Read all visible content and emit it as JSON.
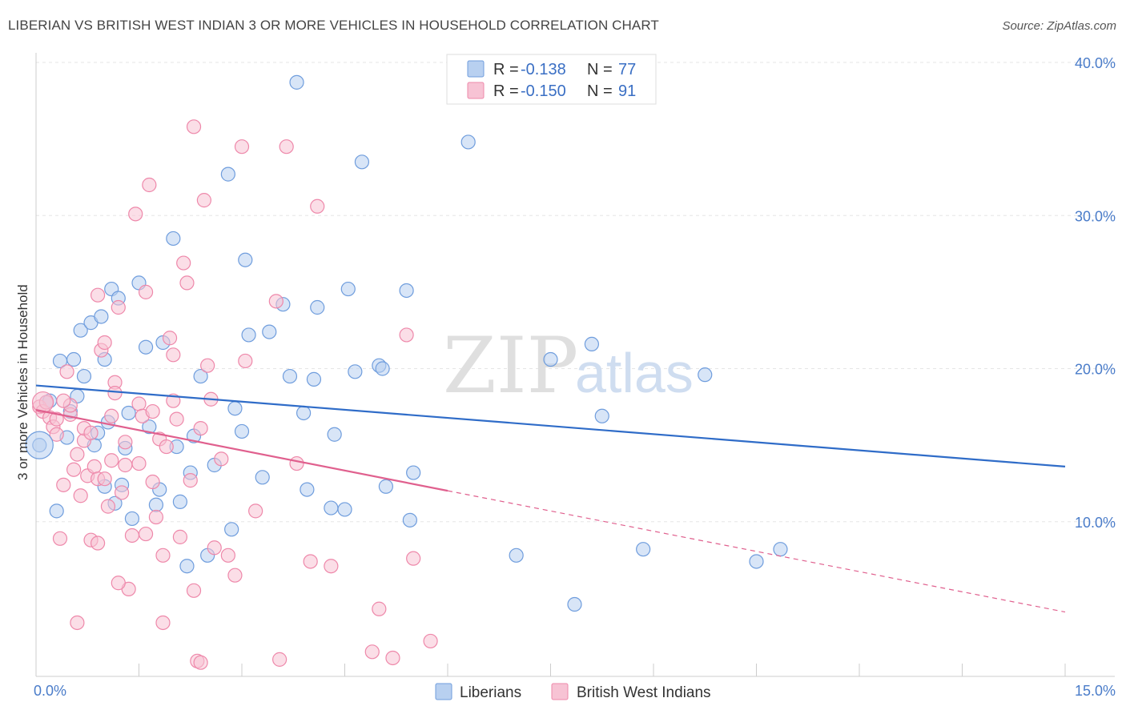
{
  "title": "LIBERIAN VS BRITISH WEST INDIAN 3 OR MORE VEHICLES IN HOUSEHOLD CORRELATION CHART",
  "source": "Source: ZipAtlas.com",
  "watermark": {
    "zip": "ZIP",
    "atlas": "atlas"
  },
  "colors": {
    "blue": "#6f9ddd",
    "blue_fill": "#b8d0f0",
    "blue_line": "#2f6cc8",
    "pink": "#ee88aa",
    "pink_fill": "#f7c3d4",
    "pink_line": "#e0608e"
  },
  "legend": {
    "rows": [
      {
        "r_label": "R =",
        "r_value": "-0.138",
        "n_label": "N =",
        "n_value": "77"
      },
      {
        "r_label": "R =",
        "r_value": "-0.150",
        "n_label": "N =",
        "n_value": "91"
      }
    ]
  },
  "chart_data": {
    "type": "scatter",
    "title": "LIBERIAN VS BRITISH WEST INDIAN 3 OR MORE VEHICLES IN HOUSEHOLD CORRELATION CHART",
    "xlabel": "",
    "ylabel": "3 or more Vehicles in Household",
    "xlim": [
      0,
      15
    ],
    "ylim": [
      0,
      40
    ],
    "x_tick_labels": [
      "0.0%",
      "15.0%"
    ],
    "y_tick_labels": [
      "10.0%",
      "20.0%",
      "30.0%",
      "40.0%"
    ],
    "y_ticks": [
      10,
      20,
      30,
      40
    ],
    "grid": true,
    "legend_entries": [
      "Liberians",
      "British West Indians"
    ],
    "series": [
      {
        "name": "Liberians",
        "color": "#6f9ddd",
        "trend": {
          "x0": 0,
          "y0": 18.9,
          "x1": 15,
          "y1": 13.6,
          "dashed_from": null
        },
        "points": [
          [
            0.05,
            15.0
          ],
          [
            0.15,
            17.8
          ],
          [
            0.3,
            10.7
          ],
          [
            0.35,
            20.5
          ],
          [
            0.45,
            15.5
          ],
          [
            0.5,
            17.2
          ],
          [
            0.55,
            20.6
          ],
          [
            0.6,
            18.2
          ],
          [
            0.65,
            22.5
          ],
          [
            0.7,
            19.5
          ],
          [
            0.8,
            23.0
          ],
          [
            0.85,
            15.0
          ],
          [
            0.9,
            15.8
          ],
          [
            0.95,
            23.4
          ],
          [
            1.0,
            20.6
          ],
          [
            1.05,
            16.5
          ],
          [
            1.1,
            25.2
          ],
          [
            1.15,
            11.2
          ],
          [
            1.2,
            24.6
          ],
          [
            1.25,
            12.4
          ],
          [
            1.3,
            14.8
          ],
          [
            1.35,
            17.1
          ],
          [
            1.4,
            10.2
          ],
          [
            1.5,
            25.6
          ],
          [
            1.6,
            21.4
          ],
          [
            1.65,
            16.2
          ],
          [
            1.8,
            12.1
          ],
          [
            1.75,
            11.1
          ],
          [
            1.85,
            21.7
          ],
          [
            2.0,
            28.5
          ],
          [
            2.05,
            14.9
          ],
          [
            2.2,
            7.1
          ],
          [
            2.25,
            13.2
          ],
          [
            2.3,
            15.6
          ],
          [
            2.4,
            19.5
          ],
          [
            2.5,
            7.8
          ],
          [
            2.6,
            13.7
          ],
          [
            2.8,
            32.7
          ],
          [
            2.9,
            17.4
          ],
          [
            2.85,
            9.5
          ],
          [
            3.0,
            15.9
          ],
          [
            3.05,
            27.1
          ],
          [
            3.1,
            22.2
          ],
          [
            3.3,
            12.9
          ],
          [
            3.4,
            22.4
          ],
          [
            3.6,
            24.2
          ],
          [
            3.7,
            19.5
          ],
          [
            3.8,
            38.7
          ],
          [
            3.9,
            17.1
          ],
          [
            3.95,
            12.1
          ],
          [
            4.05,
            19.3
          ],
          [
            4.1,
            24.0
          ],
          [
            4.3,
            10.9
          ],
          [
            4.35,
            15.7
          ],
          [
            4.5,
            10.8
          ],
          [
            4.55,
            25.2
          ],
          [
            4.65,
            19.8
          ],
          [
            4.75,
            33.5
          ],
          [
            5.0,
            20.2
          ],
          [
            5.05,
            20.0
          ],
          [
            5.1,
            12.3
          ],
          [
            5.4,
            25.1
          ],
          [
            5.45,
            10.1
          ],
          [
            5.5,
            13.2
          ],
          [
            6.3,
            34.8
          ],
          [
            7.0,
            7.8
          ],
          [
            7.5,
            20.6
          ],
          [
            7.85,
            4.6
          ],
          [
            8.1,
            21.6
          ],
          [
            8.25,
            16.9
          ],
          [
            8.85,
            8.2
          ],
          [
            9.75,
            19.6
          ],
          [
            10.5,
            7.4
          ],
          [
            10.85,
            8.2
          ],
          [
            0.2,
            17.9
          ],
          [
            1.0,
            12.3
          ],
          [
            2.1,
            11.3
          ]
        ]
      },
      {
        "name": "British West Indians",
        "color": "#ee88aa",
        "trend": {
          "x0": 0,
          "y0": 17.3,
          "x1": 15,
          "y1": 4.1,
          "dashed_from": 6.0
        },
        "points": [
          [
            0.05,
            17.5
          ],
          [
            0.1,
            17.2
          ],
          [
            0.15,
            17.8
          ],
          [
            0.2,
            16.8
          ],
          [
            0.25,
            16.2
          ],
          [
            0.3,
            15.7
          ],
          [
            0.35,
            8.9
          ],
          [
            0.4,
            12.4
          ],
          [
            0.45,
            19.8
          ],
          [
            0.5,
            17.0
          ],
          [
            0.55,
            13.4
          ],
          [
            0.6,
            14.4
          ],
          [
            0.65,
            11.7
          ],
          [
            0.7,
            15.3
          ],
          [
            0.75,
            13.0
          ],
          [
            0.8,
            8.8
          ],
          [
            0.85,
            13.6
          ],
          [
            0.9,
            8.6
          ],
          [
            0.95,
            21.2
          ],
          [
            1.0,
            21.7
          ],
          [
            1.05,
            11.0
          ],
          [
            1.1,
            14.0
          ],
          [
            1.15,
            19.1
          ],
          [
            1.2,
            24.0
          ],
          [
            1.25,
            11.9
          ],
          [
            1.3,
            13.7
          ],
          [
            1.35,
            5.6
          ],
          [
            1.4,
            9.1
          ],
          [
            1.45,
            30.1
          ],
          [
            1.5,
            17.7
          ],
          [
            1.55,
            16.9
          ],
          [
            1.6,
            25.0
          ],
          [
            1.65,
            32.0
          ],
          [
            1.7,
            12.6
          ],
          [
            1.75,
            10.3
          ],
          [
            1.8,
            15.4
          ],
          [
            1.85,
            7.8
          ],
          [
            1.9,
            14.9
          ],
          [
            1.95,
            22.0
          ],
          [
            2.0,
            20.9
          ],
          [
            2.05,
            16.7
          ],
          [
            2.1,
            9.0
          ],
          [
            2.15,
            26.9
          ],
          [
            2.2,
            25.6
          ],
          [
            2.25,
            12.7
          ],
          [
            2.3,
            35.8
          ],
          [
            2.35,
            0.9
          ],
          [
            2.4,
            0.8
          ],
          [
            2.45,
            31.0
          ],
          [
            2.5,
            20.2
          ],
          [
            2.55,
            18.0
          ],
          [
            2.6,
            8.3
          ],
          [
            2.7,
            14.1
          ],
          [
            2.8,
            7.8
          ],
          [
            2.9,
            6.5
          ],
          [
            3.0,
            34.5
          ],
          [
            3.05,
            20.5
          ],
          [
            3.2,
            10.7
          ],
          [
            3.5,
            24.4
          ],
          [
            3.55,
            1.0
          ],
          [
            3.65,
            34.5
          ],
          [
            3.8,
            13.8
          ],
          [
            4.0,
            7.4
          ],
          [
            4.1,
            30.6
          ],
          [
            4.3,
            7.1
          ],
          [
            4.9,
            1.5
          ],
          [
            5.0,
            4.3
          ],
          [
            5.2,
            1.1
          ],
          [
            5.4,
            22.2
          ],
          [
            5.5,
            7.6
          ],
          [
            5.75,
            2.2
          ],
          [
            0.6,
            3.4
          ],
          [
            1.85,
            3.4
          ],
          [
            0.3,
            16.7
          ],
          [
            0.5,
            17.6
          ],
          [
            0.7,
            16.1
          ],
          [
            0.9,
            12.8
          ],
          [
            1.1,
            16.9
          ],
          [
            1.3,
            15.2
          ],
          [
            1.5,
            13.8
          ],
          [
            1.6,
            9.2
          ],
          [
            1.7,
            17.2
          ],
          [
            2.0,
            17.9
          ],
          [
            1.0,
            12.8
          ],
          [
            0.8,
            15.8
          ],
          [
            2.3,
            5.5
          ],
          [
            1.2,
            6.0
          ],
          [
            0.9,
            24.8
          ],
          [
            0.4,
            17.9
          ],
          [
            2.4,
            16.1
          ],
          [
            1.15,
            18.4
          ]
        ]
      }
    ]
  },
  "bottom_legend": {
    "items": [
      "Liberians",
      "British West Indians"
    ]
  }
}
